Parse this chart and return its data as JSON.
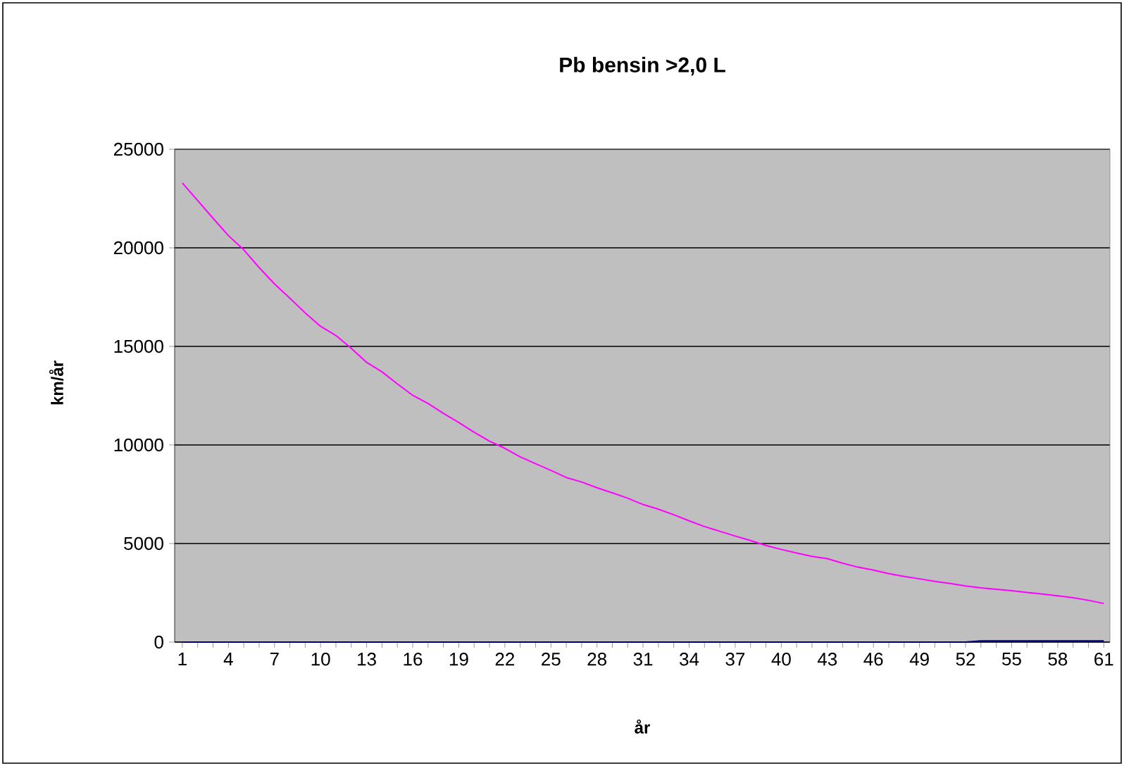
{
  "chart_data": {
    "type": "line",
    "title": "Pb bensin >2,0 L",
    "xlabel": "år",
    "ylabel": "km/år",
    "categories": [
      "1",
      null,
      null,
      "4",
      null,
      null,
      "7",
      null,
      null,
      "10",
      null,
      null,
      "13",
      null,
      null,
      "16",
      null,
      null,
      "19",
      null,
      null,
      "22",
      null,
      null,
      "25",
      null,
      null,
      "28",
      null,
      null,
      "31",
      null,
      null,
      "34",
      null,
      null,
      "37",
      null,
      null,
      "40",
      null,
      null,
      "43",
      null,
      null,
      "46",
      null,
      null,
      "49",
      null,
      null,
      "52",
      null,
      null,
      "55",
      null,
      null,
      "58",
      null,
      null,
      "61"
    ],
    "series": [
      {
        "color": "#ff00ff",
        "values": [
          23290,
          22400,
          21500,
          20620,
          19900,
          19000,
          18170,
          17450,
          16700,
          16020,
          15550,
          14900,
          14190,
          13710,
          13100,
          12520,
          12100,
          11600,
          11140,
          10650,
          10190,
          9830,
          9400,
          9050,
          8710,
          8350,
          8120,
          7830,
          7570,
          7300,
          6980,
          6740,
          6460,
          6150,
          5860,
          5620,
          5380,
          5150,
          4900,
          4700,
          4520,
          4350,
          4230,
          4000,
          3800,
          3650,
          3470,
          3330,
          3210,
          3080,
          2970,
          2850,
          2750,
          2680,
          2610,
          2520,
          2440,
          2350,
          2250,
          2120,
          1960
        ]
      },
      {
        "color": "#000080",
        "values": [
          0,
          0,
          0,
          0,
          0,
          0,
          0,
          0,
          0,
          0,
          0,
          0,
          0,
          0,
          0,
          0,
          0,
          0,
          0,
          0,
          0,
          0,
          0,
          0,
          0,
          0,
          0,
          0,
          0,
          0,
          0,
          0,
          0,
          0,
          0,
          0,
          0,
          0,
          0,
          0,
          0,
          0,
          0,
          0,
          0,
          0,
          0,
          0,
          0,
          0,
          0,
          0,
          60,
          60,
          60,
          60,
          60,
          60,
          60,
          60,
          60
        ]
      }
    ],
    "ylim": [
      0,
      25000
    ],
    "yticks": [
      0,
      5000,
      10000,
      15000,
      20000,
      25000
    ],
    "grid": "y"
  }
}
